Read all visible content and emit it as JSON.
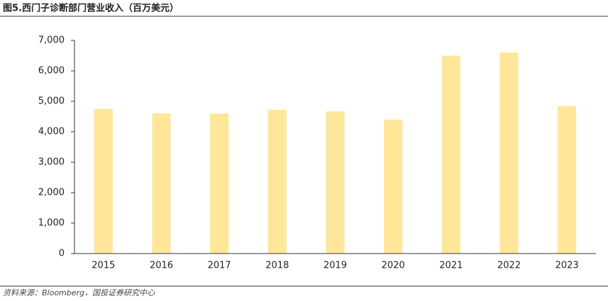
{
  "chart_data": {
    "type": "bar",
    "title": "图5.西门子诊断部门营业收入（百万美元）",
    "source": "资料来源：Bloomberg，国投证券研究中心",
    "categories": [
      "2015",
      "2016",
      "2017",
      "2018",
      "2019",
      "2020",
      "2021",
      "2022",
      "2023"
    ],
    "values": [
      4750,
      4600,
      4600,
      4720,
      4670,
      4400,
      6500,
      6600,
      4850
    ],
    "color": "#ffe699",
    "ylim": [
      0,
      7000
    ],
    "yticks": [
      0,
      {
        "value": 1000,
        "label": "1,000"
      },
      {
        "value": 2000,
        "label": "2,000"
      },
      {
        "value": 3000,
        "label": "3,000"
      },
      {
        "value": 4000,
        "label": "4,000"
      },
      {
        "value": 5000,
        "label": "5,000"
      },
      {
        "value": 6000,
        "label": "6,000"
      },
      {
        "value": 7000,
        "label": "7,000"
      }
    ],
    "grid": false
  }
}
